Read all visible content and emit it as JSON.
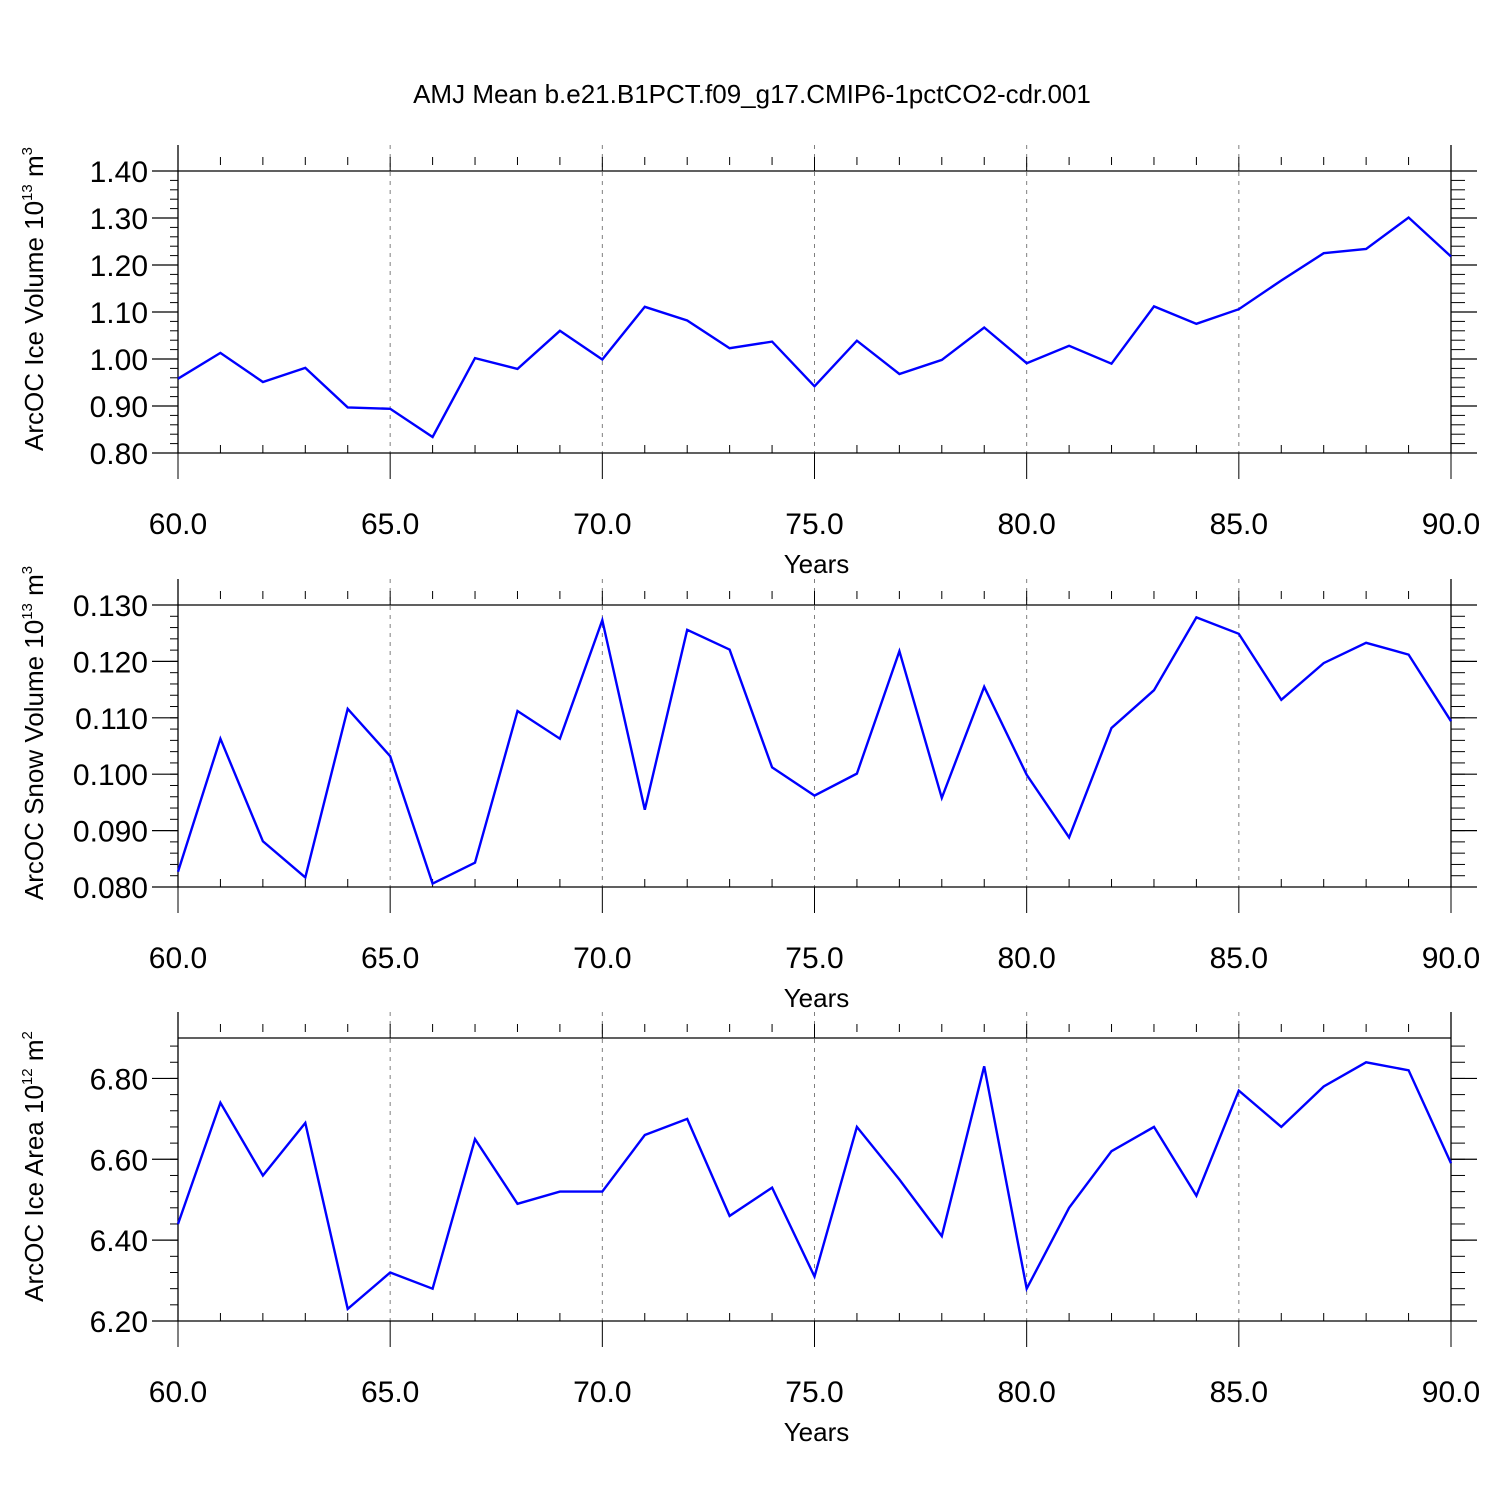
{
  "title": "AMJ Mean b.e21.B1PCT.f09_g17.CMIP6-1pctCO2-cdr.001",
  "colors": {
    "line": "#0000ff",
    "axis": "#000000",
    "grid": "#7f7f7f"
  },
  "chart_data": [
    {
      "type": "line",
      "xlabel": "Years",
      "ylabel": {
        "prefix": "ArcOC Ice Volume 10",
        "exp": "13",
        "unit": " m",
        "unit_exp": "3"
      },
      "xlim": [
        60,
        90
      ],
      "ylim": [
        0.8,
        1.4
      ],
      "x_ticks": [
        "60.0",
        "65.0",
        "70.0",
        "75.0",
        "80.0",
        "85.0",
        "90.0"
      ],
      "y_ticks": [
        "0.80",
        "0.90",
        "1.00",
        "1.10",
        "1.20",
        "1.30",
        "1.40"
      ],
      "grid": "vertical dashed at major x ticks",
      "x": [
        60,
        61,
        62,
        63,
        64,
        65,
        66,
        67,
        68,
        69,
        70,
        71,
        72,
        73,
        74,
        75,
        76,
        77,
        78,
        79,
        80,
        81,
        82,
        83,
        84,
        85,
        86,
        87,
        88,
        89,
        90
      ],
      "y": [
        0.958,
        1.013,
        0.951,
        0.981,
        0.897,
        0.894,
        0.834,
        1.002,
        0.979,
        1.06,
        0.999,
        1.111,
        1.082,
        1.023,
        1.037,
        0.942,
        1.039,
        0.968,
        0.998,
        1.067,
        0.991,
        1.028,
        0.99,
        1.112,
        1.075,
        1.106,
        1.167,
        1.225,
        1.234,
        1.301,
        1.218
      ]
    },
    {
      "type": "line",
      "xlabel": "Years",
      "ylabel": {
        "prefix": "ArcOC Snow Volume 10",
        "exp": "13",
        "unit": " m",
        "unit_exp": "3"
      },
      "xlim": [
        60,
        90
      ],
      "ylim": [
        0.08,
        0.13
      ],
      "x_ticks": [
        "60.0",
        "65.0",
        "70.0",
        "75.0",
        "80.0",
        "85.0",
        "90.0"
      ],
      "y_ticks": [
        "0.080",
        "0.090",
        "0.100",
        "0.110",
        "0.120",
        "0.130"
      ],
      "grid": "vertical dashed at major x ticks",
      "x": [
        60,
        61,
        62,
        63,
        64,
        65,
        66,
        67,
        68,
        69,
        70,
        71,
        72,
        73,
        74,
        75,
        76,
        77,
        78,
        79,
        80,
        81,
        82,
        83,
        84,
        85,
        86,
        87,
        88,
        89,
        90
      ],
      "y": [
        0.0827,
        0.1063,
        0.0881,
        0.0817,
        0.1116,
        0.1032,
        0.0806,
        0.0843,
        0.1112,
        0.1063,
        0.1273,
        0.0937,
        0.1256,
        0.1221,
        0.1012,
        0.0962,
        0.1001,
        0.1218,
        0.0958,
        0.1155,
        0.0999,
        0.0888,
        0.1082,
        0.1149,
        0.1278,
        0.1249,
        0.1132,
        0.1197,
        0.1233,
        0.1212,
        0.1094
      ]
    },
    {
      "type": "line",
      "xlabel": "Years",
      "ylabel": {
        "prefix": "ArcOC Ice Area 10",
        "exp": "12",
        "unit": " m",
        "unit_exp": "2"
      },
      "xlim": [
        60,
        90
      ],
      "ylim": [
        6.2,
        6.9
      ],
      "x_ticks": [
        "60.0",
        "65.0",
        "70.0",
        "75.0",
        "80.0",
        "85.0",
        "90.0"
      ],
      "y_ticks": [
        "6.20",
        "6.40",
        "6.60",
        "6.80"
      ],
      "grid": "vertical dashed at major x ticks",
      "x": [
        60,
        61,
        62,
        63,
        64,
        65,
        66,
        67,
        68,
        69,
        70,
        71,
        72,
        73,
        74,
        75,
        76,
        77,
        78,
        79,
        80,
        81,
        82,
        83,
        84,
        85,
        86,
        87,
        88,
        89,
        90
      ],
      "y": [
        6.44,
        6.74,
        6.56,
        6.69,
        6.23,
        6.32,
        6.28,
        6.65,
        6.49,
        6.52,
        6.52,
        6.66,
        6.7,
        6.46,
        6.53,
        6.31,
        6.68,
        6.55,
        6.41,
        6.83,
        6.28,
        6.48,
        6.62,
        6.68,
        6.51,
        6.77,
        6.68,
        6.78,
        6.84,
        6.82,
        6.59
      ]
    }
  ]
}
